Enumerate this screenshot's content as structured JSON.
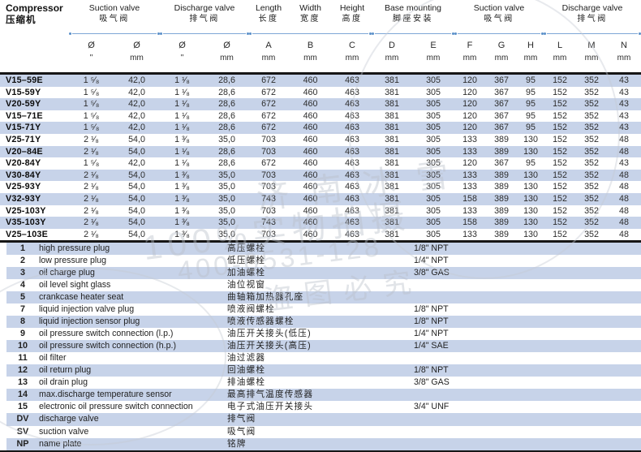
{
  "header": {
    "compressor_en": "Compressor",
    "compressor_zh": "压缩机",
    "groups": [
      {
        "en": "Suction valve",
        "zh": "吸气阀"
      },
      {
        "en": "Discharge valve",
        "zh": "排气阀"
      },
      {
        "en": "Length",
        "zh": "长度"
      },
      {
        "en": "Width",
        "zh": "宽度"
      },
      {
        "en": "Height",
        "zh": "高度"
      },
      {
        "en": "Base mounting",
        "zh": "脚座安装"
      },
      {
        "en": "Suction valve",
        "zh": "吸气阀"
      },
      {
        "en": "Discharge valve",
        "zh": "排气阀"
      }
    ],
    "subheaders": [
      {
        "sym": "Ø",
        "unit": "\""
      },
      {
        "sym": "Ø",
        "unit": "mm"
      },
      {
        "sym": "Ø",
        "unit": "\""
      },
      {
        "sym": "Ø",
        "unit": "mm"
      },
      {
        "sym": "A",
        "unit": "mm"
      },
      {
        "sym": "B",
        "unit": "mm"
      },
      {
        "sym": "C",
        "unit": "mm"
      },
      {
        "sym": "D",
        "unit": "mm"
      },
      {
        "sym": "E",
        "unit": "mm"
      },
      {
        "sym": "F",
        "unit": "mm"
      },
      {
        "sym": "G",
        "unit": "mm"
      },
      {
        "sym": "H",
        "unit": "mm"
      },
      {
        "sym": "L",
        "unit": "mm"
      },
      {
        "sym": "M",
        "unit": "mm"
      },
      {
        "sym": "N",
        "unit": "mm"
      }
    ]
  },
  "table": {
    "rows": [
      {
        "model": "V15–59E",
        "values": [
          "1 ⁵⁄₈",
          "42,0",
          "1 ¹⁄₈",
          "28,6",
          "672",
          "460",
          "463",
          "381",
          "305",
          "120",
          "367",
          "95",
          "152",
          "352",
          "43"
        ]
      },
      {
        "model": "V15-59Y",
        "values": [
          "1 ⁵⁄₈",
          "42,0",
          "1 ¹⁄₈",
          "28,6",
          "672",
          "460",
          "463",
          "381",
          "305",
          "120",
          "367",
          "95",
          "152",
          "352",
          "43"
        ]
      },
      {
        "model": "V20-59Y",
        "values": [
          "1 ⁵⁄₈",
          "42,0",
          "1 ¹⁄₈",
          "28,6",
          "672",
          "460",
          "463",
          "381",
          "305",
          "120",
          "367",
          "95",
          "152",
          "352",
          "43"
        ]
      },
      {
        "model": "V15–71E",
        "values": [
          "1 ⁵⁄₈",
          "42,0",
          "1 ¹⁄₈",
          "28,6",
          "672",
          "460",
          "463",
          "381",
          "305",
          "120",
          "367",
          "95",
          "152",
          "352",
          "43"
        ]
      },
      {
        "model": "V15-71Y",
        "values": [
          "1 ⁵⁄₈",
          "42,0",
          "1 ¹⁄₈",
          "28,6",
          "672",
          "460",
          "463",
          "381",
          "305",
          "120",
          "367",
          "95",
          "152",
          "352",
          "43"
        ]
      },
      {
        "model": "V25-71Y",
        "values": [
          "2 ¹⁄₈",
          "54,0",
          "1 ³⁄₈",
          "35,0",
          "703",
          "460",
          "463",
          "381",
          "305",
          "133",
          "389",
          "130",
          "152",
          "352",
          "48"
        ]
      },
      {
        "model": "V20–84E",
        "values": [
          "2 ¹⁄₈",
          "54,0",
          "1 ¹⁄₈",
          "28,6",
          "703",
          "460",
          "463",
          "381",
          "305",
          "133",
          "389",
          "130",
          "152",
          "352",
          "48"
        ]
      },
      {
        "model": "V20-84Y",
        "values": [
          "1 ⁵⁄₈",
          "42,0",
          "1 ¹⁄₈",
          "28,6",
          "672",
          "460",
          "463",
          "381",
          "305",
          "120",
          "367",
          "95",
          "152",
          "352",
          "43"
        ]
      },
      {
        "model": "V30-84Y",
        "values": [
          "2 ¹⁄₈",
          "54,0",
          "1 ³⁄₈",
          "35,0",
          "703",
          "460",
          "463",
          "381",
          "305",
          "133",
          "389",
          "130",
          "152",
          "352",
          "48"
        ]
      },
      {
        "model": "V25-93Y",
        "values": [
          "2 ¹⁄₈",
          "54,0",
          "1 ³⁄₈",
          "35,0",
          "703",
          "460",
          "463",
          "381",
          "305",
          "133",
          "389",
          "130",
          "152",
          "352",
          "48"
        ]
      },
      {
        "model": "V32-93Y",
        "values": [
          "2 ¹⁄₈",
          "54,0",
          "1 ³⁄₈",
          "35,0",
          "743",
          "460",
          "463",
          "381",
          "305",
          "158",
          "389",
          "130",
          "152",
          "352",
          "48"
        ]
      },
      {
        "model": "V25-103Y",
        "values": [
          "2 ¹⁄₈",
          "54,0",
          "1 ³⁄₈",
          "35,0",
          "703",
          "460",
          "463",
          "381",
          "305",
          "133",
          "389",
          "130",
          "152",
          "352",
          "48"
        ]
      },
      {
        "model": "V35-103Y",
        "values": [
          "2 ¹⁄₈",
          "54,0",
          "1 ³⁄₈",
          "35,0",
          "743",
          "460",
          "463",
          "381",
          "305",
          "158",
          "389",
          "130",
          "152",
          "352",
          "48"
        ]
      },
      {
        "model": "V25–103E",
        "values": [
          "2 ¹⁄₈",
          "54,0",
          "1 ³⁄₈",
          "35,0",
          "703",
          "460",
          "463",
          "381",
          "305",
          "133",
          "389",
          "130",
          "152",
          "352",
          "48"
        ]
      }
    ]
  },
  "legend": {
    "items": [
      {
        "code": "1",
        "en": "high pressure plug",
        "zh": "高压螺栓",
        "fitting": "1/8\" NPT"
      },
      {
        "code": "2",
        "en": "low pressure plug",
        "zh": "低压螺栓",
        "fitting": "1/4\" NPT"
      },
      {
        "code": "3",
        "en": "oil charge plug",
        "zh": "加油螺栓",
        "fitting": "3/8\" GAS"
      },
      {
        "code": "4",
        "en": "oil level sight glass",
        "zh": "油位视窗",
        "fitting": ""
      },
      {
        "code": "5",
        "en": "crankcase heater seat",
        "zh": "曲轴箱加热器孔座",
        "fitting": ""
      },
      {
        "code": "7",
        "en": "liquid injection valve plug",
        "zh": "喷液阀螺栓",
        "fitting": "1/8\" NPT"
      },
      {
        "code": "8",
        "en": "liquid injection sensor plug",
        "zh": "喷液传感器螺栓",
        "fitting": "1/8\" NPT"
      },
      {
        "code": "9",
        "en": "oil pressure switch connection (l.p.)",
        "zh": "油压开关接头(低压)",
        "fitting": "1/4\" NPT"
      },
      {
        "code": "10",
        "en": "oil pressure switch connection (h.p.)",
        "zh": "油压开关接头(高压)",
        "fitting": "1/4\" SAE"
      },
      {
        "code": "11",
        "en": "oil filter",
        "zh": "油过滤器",
        "fitting": ""
      },
      {
        "code": "12",
        "en": "oil return plug",
        "zh": "回油螺栓",
        "fitting": "1/8\" NPT"
      },
      {
        "code": "13",
        "en": "oil drain plug",
        "zh": "排油螺栓",
        "fitting": "3/8\" GAS"
      },
      {
        "code": "14",
        "en": "max.discharge temperature sensor",
        "zh": "最高排气温度传感器",
        "fitting": ""
      },
      {
        "code": "15",
        "en": "electronic oil pressure switch connection",
        "zh": "电子式油压开关接头",
        "fitting": "3/4\" UNF"
      },
      {
        "code": "DV",
        "en": "discharge valve",
        "zh": "排气阀",
        "fitting": ""
      },
      {
        "code": "SV",
        "en": "suction valve",
        "zh": "吸气阀",
        "fitting": ""
      },
      {
        "code": "NP",
        "en": "name plate",
        "zh": "铭牌",
        "fitting": ""
      }
    ]
  },
  "watermark": {
    "line1": "济南冰雪",
    "line2": "100%实物拍摄",
    "line3": "400-0531-128",
    "line4": "盗图必究"
  },
  "colors": {
    "stripe": "#c7d3e9",
    "line": "#7ea6d6",
    "dot": "#5a8fc9",
    "rule": "#161616"
  }
}
